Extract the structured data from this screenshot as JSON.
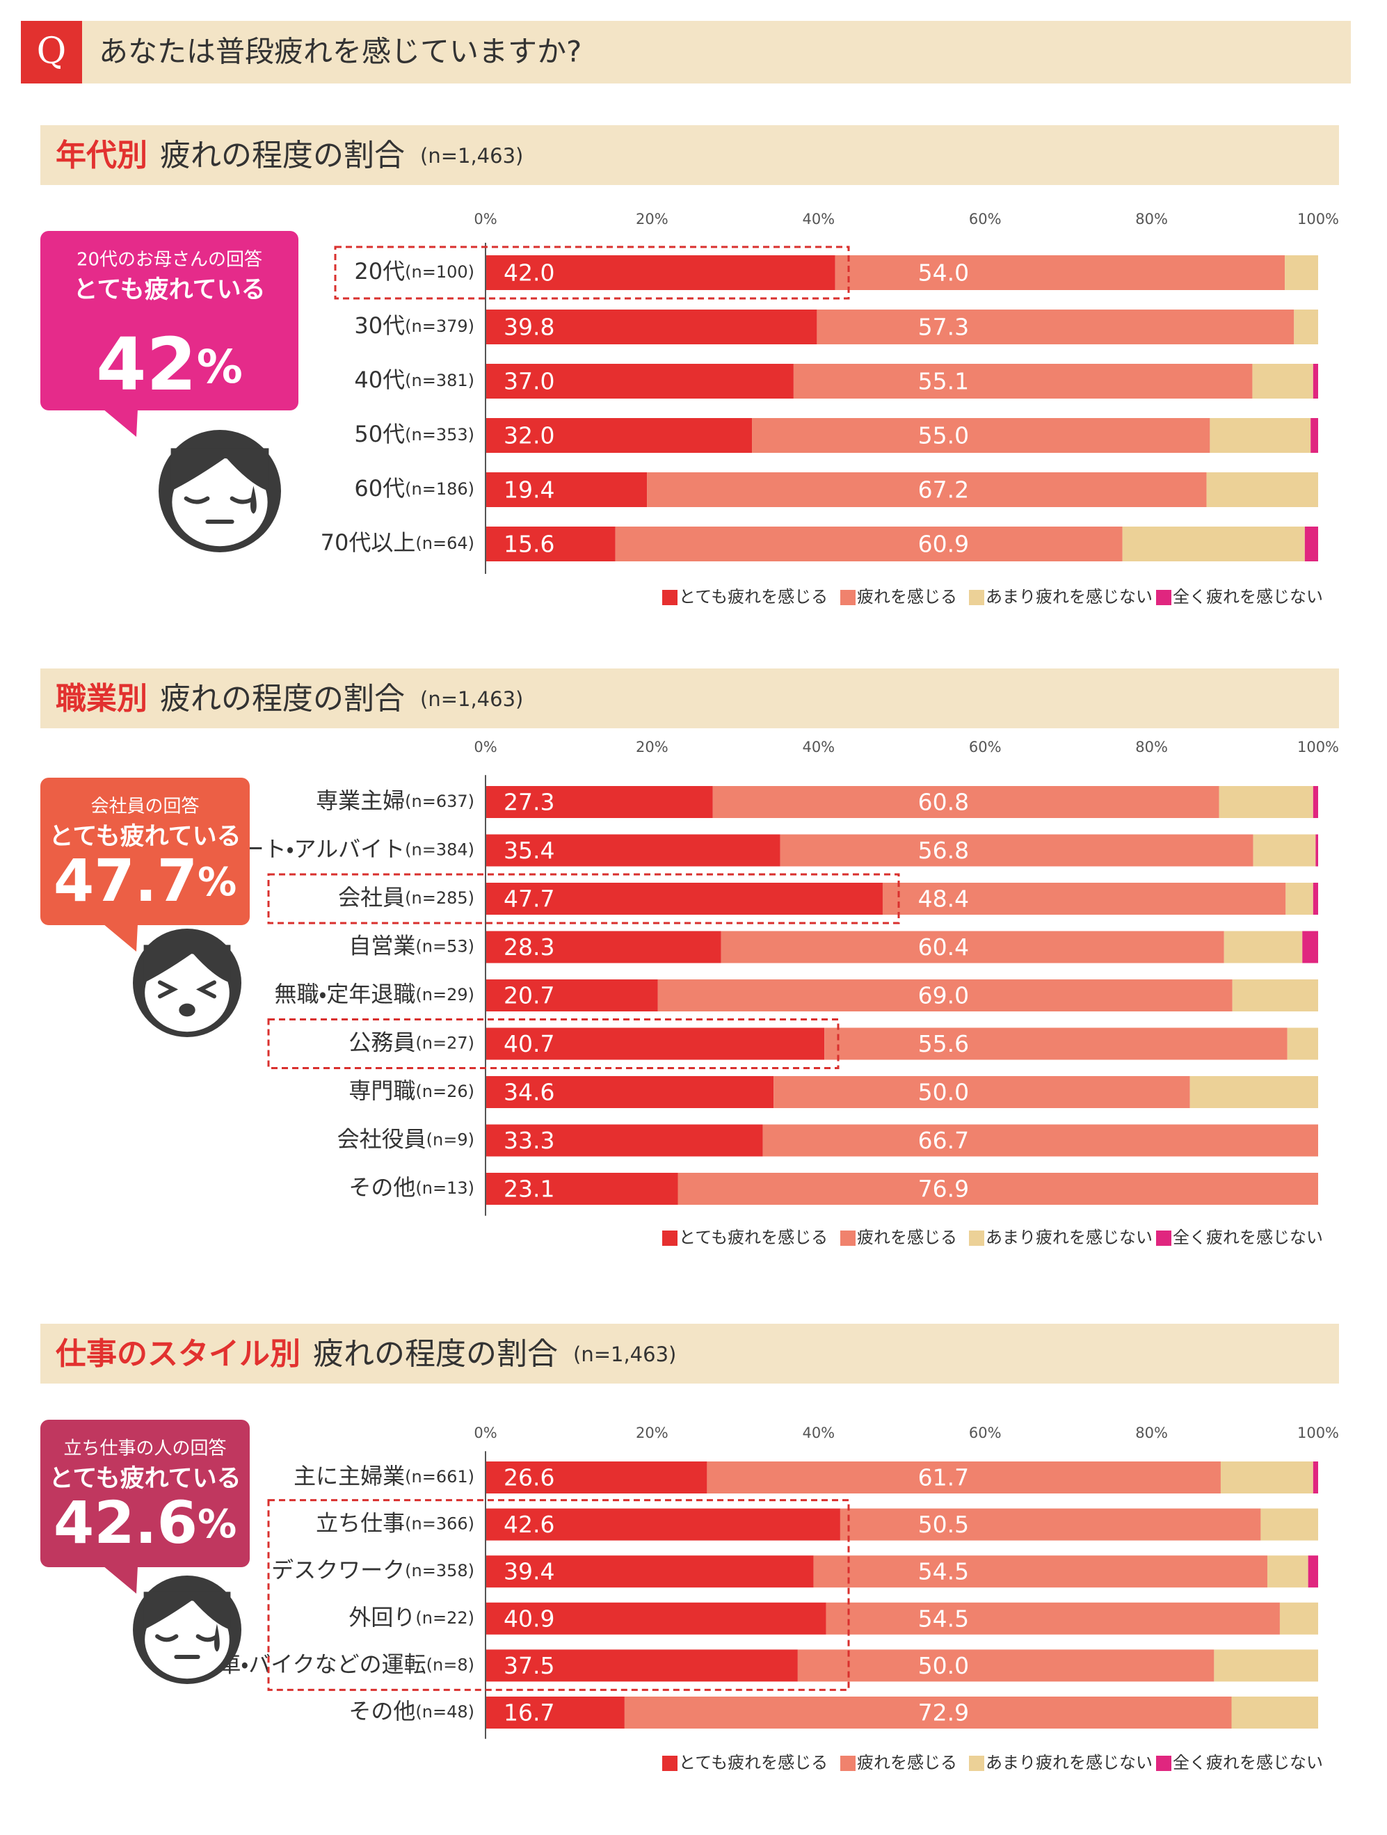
{
  "header": {
    "q": "Q",
    "question": "あなたは普段疲れを感じていますか?"
  },
  "chart_data": [
    {
      "type": "bar",
      "orientation": "horizontal",
      "stacked": true,
      "title": "年代別",
      "subtitle": "疲れの程度の割合",
      "note": "(n=1,463)",
      "categories": [
        "20代",
        "30代",
        "40代",
        "50代",
        "60代",
        "70代以上"
      ],
      "n_labels": [
        "(n=100)",
        "(n=379)",
        "(n=381)",
        "(n=353)",
        "(n=186)",
        "(n=64)"
      ],
      "series": [
        {
          "name": "とても疲れを感じる",
          "color": "#e62f2f",
          "values": [
            42.0,
            39.8,
            37.0,
            32.0,
            19.4,
            15.6
          ],
          "value_labels": [
            "42.0",
            "39.8",
            "37.0",
            "32.0",
            "19.4",
            "15.6"
          ]
        },
        {
          "name": "疲れを感じる",
          "color": "#f0826d",
          "values": [
            54.0,
            57.3,
            55.1,
            55.0,
            67.2,
            60.9
          ],
          "value_labels": [
            "54.0",
            "57.3",
            "55.1",
            "55.0",
            "67.2",
            "60.9"
          ]
        },
        {
          "name": "あまり疲れを感じない",
          "color": "#ecd197",
          "values": [
            4.0,
            2.9,
            7.3,
            12.1,
            13.4,
            21.9
          ]
        },
        {
          "name": "全く疲れを感じない",
          "color": "#e0267f",
          "values": [
            0,
            0,
            0.6,
            0.9,
            0,
            1.6
          ]
        }
      ],
      "xlim": [
        0,
        100
      ],
      "xticks": [
        {
          "value": 0,
          "label": "0%"
        },
        {
          "value": 20,
          "label": "20%"
        },
        {
          "value": 40,
          "label": "40%"
        },
        {
          "value": 60,
          "label": "60%"
        },
        {
          "value": 80,
          "label": "80%"
        },
        {
          "value": 100,
          "label": "100%"
        }
      ],
      "callout": {
        "line1": "20代のお母さんの回答",
        "line2": "とても疲れている",
        "number": "42",
        "unit": "%",
        "color": "#e52b8a"
      }
    },
    {
      "type": "bar",
      "orientation": "horizontal",
      "stacked": true,
      "title": "職業別",
      "subtitle": "疲れの程度の割合",
      "note": "(n=1,463)",
      "categories": [
        "専業主婦",
        "パート・アルバイト",
        "会社員",
        "自営業",
        "無職・定年退職",
        "公務員",
        "専門職",
        "会社役員",
        "その他"
      ],
      "n_labels": [
        "(n=637)",
        "(n=384)",
        "(n=285)",
        "(n=53)",
        "(n=29)",
        "(n=27)",
        "(n=26)",
        "(n=9)",
        "(n=13)"
      ],
      "series": [
        {
          "name": "とても疲れを感じる",
          "color": "#e62f2f",
          "values": [
            27.3,
            35.4,
            47.7,
            28.3,
            20.7,
            40.7,
            34.6,
            33.3,
            23.1
          ],
          "value_labels": [
            "27.3",
            "35.4",
            "47.7",
            "28.3",
            "20.7",
            "40.7",
            "34.6",
            "33.3",
            "23.1"
          ]
        },
        {
          "name": "疲れを感じる",
          "color": "#f0826d",
          "values": [
            60.8,
            56.8,
            48.4,
            60.4,
            69.0,
            55.6,
            50.0,
            66.7,
            76.9
          ],
          "value_labels": [
            "60.8",
            "56.8",
            "48.4",
            "60.4",
            "69.0",
            "55.6",
            "50.0",
            "66.7",
            "76.9"
          ]
        },
        {
          "name": "あまり疲れを感じない",
          "color": "#ecd197",
          "values": [
            11.3,
            7.5,
            3.3,
            9.4,
            10.3,
            3.7,
            15.4,
            0,
            0
          ]
        },
        {
          "name": "全く疲れを感じない",
          "color": "#e0267f",
          "values": [
            0.6,
            0.3,
            0.6,
            1.9,
            0,
            0,
            0,
            0,
            0
          ]
        }
      ],
      "xlim": [
        0,
        100
      ],
      "xticks": [
        {
          "value": 0,
          "label": "0%"
        },
        {
          "value": 20,
          "label": "20%"
        },
        {
          "value": 40,
          "label": "40%"
        },
        {
          "value": 60,
          "label": "60%"
        },
        {
          "value": 80,
          "label": "80%"
        },
        {
          "value": 100,
          "label": "100%"
        }
      ],
      "callout": {
        "line1": "会社員の回答",
        "line2": "とても疲れている",
        "number": "47.7",
        "unit": "%",
        "color": "#ec5f45"
      }
    },
    {
      "type": "bar",
      "orientation": "horizontal",
      "stacked": true,
      "title": "仕事のスタイル別",
      "subtitle": "疲れの程度の割合",
      "note": "(n=1,463)",
      "categories": [
        "主に主婦業",
        "立ち仕事",
        "デスクワーク",
        "外回り",
        "車・バイクなどの運転",
        "その他"
      ],
      "n_labels": [
        "(n=661)",
        "(n=366)",
        "(n=358)",
        "(n=22)",
        "(n=8)",
        "(n=48)"
      ],
      "series": [
        {
          "name": "とても疲れを感じる",
          "color": "#e62f2f",
          "values": [
            26.6,
            42.6,
            39.4,
            40.9,
            37.5,
            16.7
          ],
          "value_labels": [
            "26.6",
            "42.6",
            "39.4",
            "40.9",
            "37.5",
            "16.7"
          ]
        },
        {
          "name": "疲れを感じる",
          "color": "#f0826d",
          "values": [
            61.7,
            50.5,
            54.5,
            54.5,
            50.0,
            72.9
          ],
          "value_labels": [
            "61.7",
            "50.5",
            "54.5",
            "54.5",
            "50.0",
            "72.9"
          ]
        },
        {
          "name": "あまり疲れを感じない",
          "color": "#ecd197",
          "values": [
            11.1,
            6.9,
            4.9,
            4.6,
            12.5,
            10.4
          ]
        },
        {
          "name": "全く疲れを感じない",
          "color": "#e0267f",
          "values": [
            0.6,
            0,
            1.2,
            0,
            0,
            0
          ]
        }
      ],
      "xlim": [
        0,
        100
      ],
      "xticks": [
        {
          "value": 0,
          "label": "0%"
        },
        {
          "value": 20,
          "label": "20%"
        },
        {
          "value": 40,
          "label": "40%"
        },
        {
          "value": 60,
          "label": "60%"
        },
        {
          "value": 80,
          "label": "80%"
        },
        {
          "value": 100,
          "label": "100%"
        }
      ],
      "callout": {
        "line1": "立ち仕事の人の回答",
        "line2": "とても疲れている",
        "number": "42.6",
        "unit": "%",
        "color": "#c0375f"
      }
    }
  ]
}
